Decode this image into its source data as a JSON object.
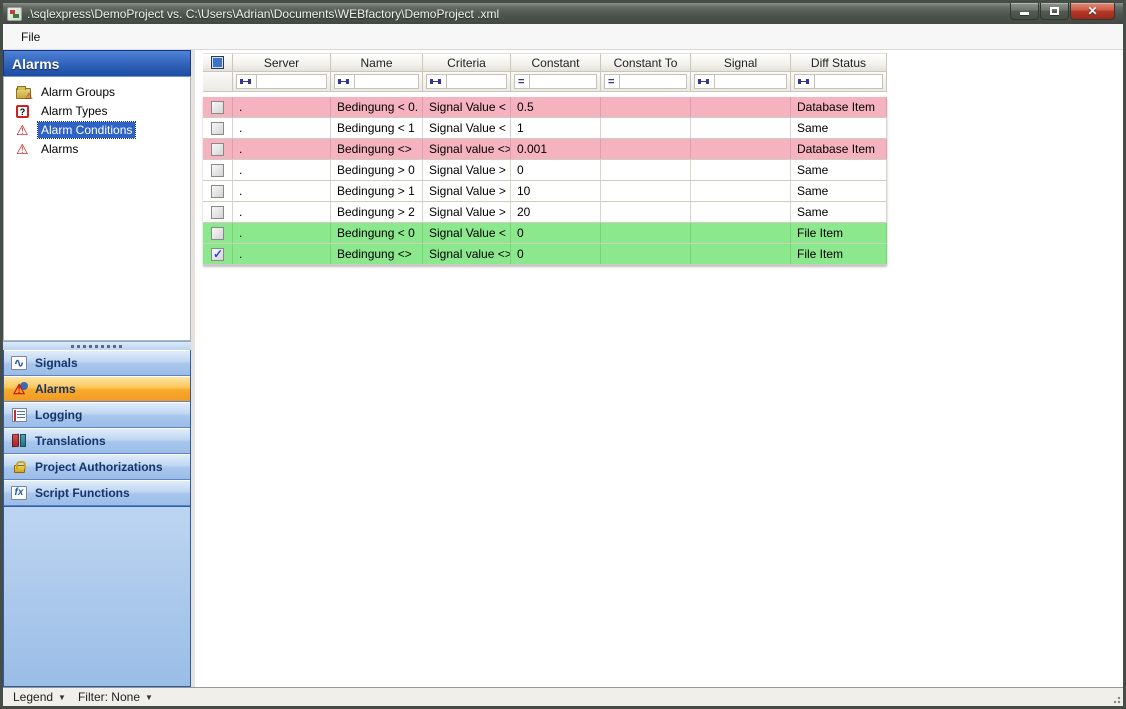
{
  "window": {
    "title": ".\\sqlexpress\\DemoProject vs. C:\\Users\\Adrian\\Documents\\WEBfactory\\DemoProject .xml"
  },
  "menu": {
    "items": [
      {
        "label": "File"
      }
    ]
  },
  "sidebar": {
    "header": "Alarms",
    "tree": [
      {
        "label": "Alarm Groups",
        "icon": "alarm-groups-icon",
        "selected": false
      },
      {
        "label": "Alarm Types",
        "icon": "alarm-types-icon",
        "selected": false
      },
      {
        "label": "Alarm Conditions",
        "icon": "alarm-conditions-icon",
        "selected": true
      },
      {
        "label": "Alarms",
        "icon": "alarms-icon",
        "selected": false
      }
    ],
    "nav": [
      {
        "label": "Signals",
        "icon": "signals-icon",
        "active": false
      },
      {
        "label": "Alarms",
        "icon": "alarm-icon",
        "active": true
      },
      {
        "label": "Logging",
        "icon": "logging-icon",
        "active": false
      },
      {
        "label": "Translations",
        "icon": "translations-icon",
        "active": false
      },
      {
        "label": "Project Authorizations",
        "icon": "lock-icon",
        "active": false
      },
      {
        "label": "Script Functions",
        "icon": "fx-icon",
        "active": false
      }
    ]
  },
  "grid": {
    "columns": [
      "Server",
      "Name",
      "Criteria",
      "Constant",
      "Constant To",
      "Signal",
      "Diff Status"
    ],
    "filter_operators": [
      "range",
      "range",
      "range",
      "equals",
      "equals",
      "range",
      "range"
    ],
    "rows": [
      {
        "checked": false,
        "server": ".",
        "name": "Bedingung < 0.",
        "criteria": "Signal Value <",
        "constant": "0.5",
        "constant_to": "",
        "signal": "",
        "diff_status": "Database Item",
        "status": "database"
      },
      {
        "checked": false,
        "server": ".",
        "name": "Bedingung < 1",
        "criteria": "Signal Value <",
        "constant": "1",
        "constant_to": "",
        "signal": "",
        "diff_status": "Same",
        "status": "same"
      },
      {
        "checked": false,
        "server": ".",
        "name": "Bedingung <>",
        "criteria": "Signal value <>",
        "constant": "0.001",
        "constant_to": "",
        "signal": "",
        "diff_status": "Database Item",
        "status": "database"
      },
      {
        "checked": false,
        "server": ".",
        "name": "Bedingung > 0",
        "criteria": "Signal Value >",
        "constant": "0",
        "constant_to": "",
        "signal": "",
        "diff_status": "Same",
        "status": "same"
      },
      {
        "checked": false,
        "server": ".",
        "name": "Bedingung > 1",
        "criteria": "Signal Value >",
        "constant": "10",
        "constant_to": "",
        "signal": "",
        "diff_status": "Same",
        "status": "same"
      },
      {
        "checked": false,
        "server": ".",
        "name": "Bedingung > 2",
        "criteria": "Signal Value >",
        "constant": "20",
        "constant_to": "",
        "signal": "",
        "diff_status": "Same",
        "status": "same"
      },
      {
        "checked": false,
        "server": ".",
        "name": "Bedingung < 0",
        "criteria": "Signal Value <",
        "constant": "0",
        "constant_to": "",
        "signal": "",
        "diff_status": "File Item",
        "status": "file"
      },
      {
        "checked": true,
        "server": ".",
        "name": "Bedingung <>",
        "criteria": "Signal value <>",
        "constant": "0",
        "constant_to": "",
        "signal": "",
        "diff_status": "File Item",
        "status": "file"
      }
    ]
  },
  "status_bar": {
    "legend_label": "Legend",
    "filter_label": "Filter: None"
  },
  "colors": {
    "row_database": "#f5b2bf",
    "row_file": "#8ce88c",
    "nav_active_orange": "#f8ab2d",
    "selection_blue": "#2e62c4",
    "panel_header_blue": "#2e61b8"
  }
}
